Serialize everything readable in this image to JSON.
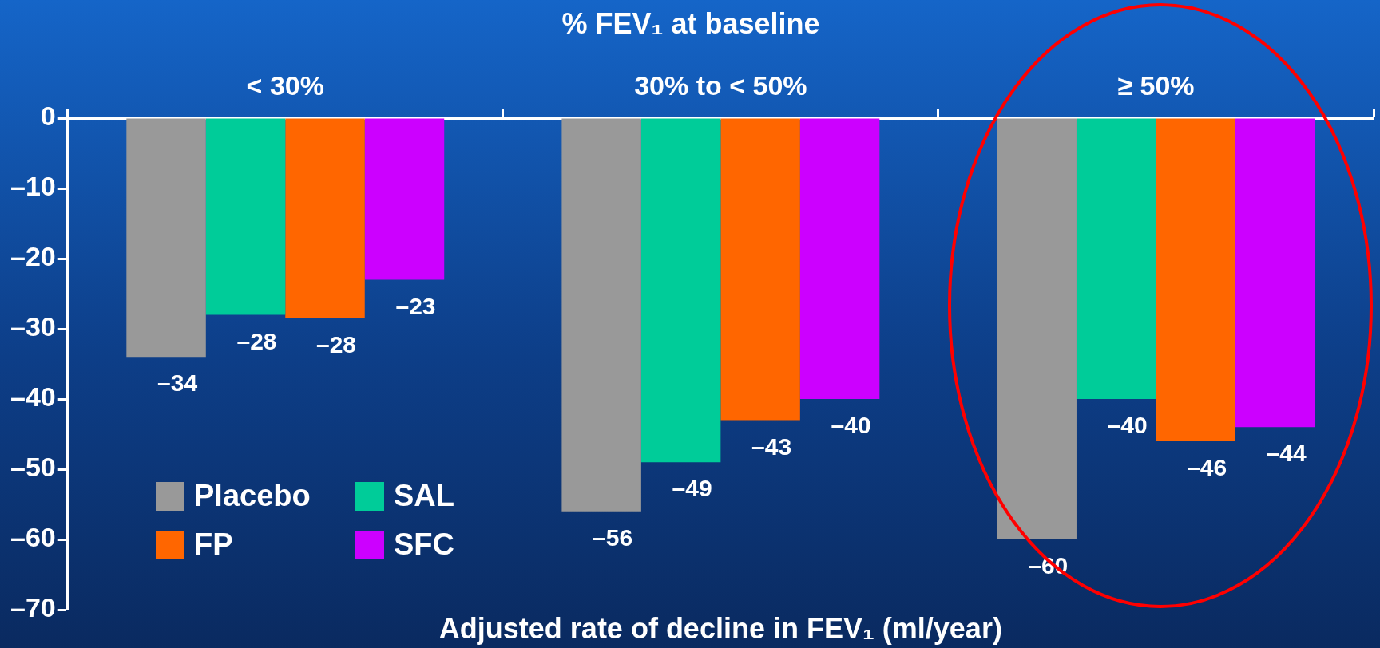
{
  "chart_data": {
    "type": "bar",
    "title": "% FEV₁ at baseline",
    "xlabel": "Adjusted rate of decline in FEV₁ (ml/year)",
    "categories": [
      "< 30%",
      "30% to < 50%",
      "≥ 50%"
    ],
    "series": [
      {
        "name": "Placebo",
        "color": "#999999",
        "values": [
          -34,
          -56,
          -60
        ],
        "value_labels": [
          "–34",
          "–56",
          "–60"
        ]
      },
      {
        "name": "SAL",
        "color": "#00cc99",
        "values": [
          -28,
          -49,
          -40
        ],
        "value_labels": [
          "–28",
          "–49",
          "–40"
        ]
      },
      {
        "name": "FP",
        "color": "#ff6600",
        "values": [
          -28.5,
          -43,
          -46
        ],
        "value_labels": [
          "–28",
          "–43",
          "–46"
        ]
      },
      {
        "name": "SFC",
        "color": "#cc00ff",
        "values": [
          -23,
          -40,
          -44
        ],
        "value_labels": [
          "–23",
          "–40",
          "–44"
        ]
      }
    ],
    "ylim": [
      -70,
      0
    ],
    "yticks": [
      {
        "value": 0,
        "label": "0"
      },
      {
        "value": -10,
        "label": "–10"
      },
      {
        "value": -20,
        "label": "–20"
      },
      {
        "value": -30,
        "label": "–30"
      },
      {
        "value": -40,
        "label": "–40"
      },
      {
        "value": -50,
        "label": "–50"
      },
      {
        "value": -60,
        "label": "–60"
      },
      {
        "value": -70,
        "label": "–70"
      }
    ],
    "legend": "bottom left",
    "grid": false
  }
}
